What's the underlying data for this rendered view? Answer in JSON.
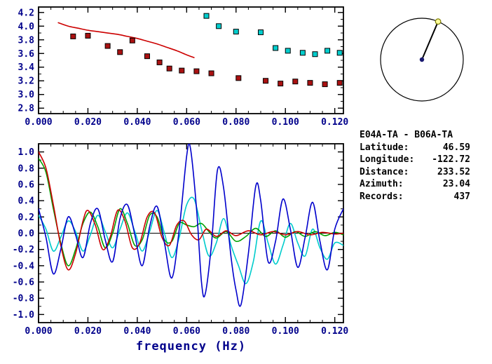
{
  "info": {
    "title": "E04A-TA - B06A-TA",
    "rows": [
      {
        "label": "Latitude:",
        "value": "46.59"
      },
      {
        "label": "Longitude:",
        "value": "-122.72"
      },
      {
        "label": "Distance:",
        "value": "233.52"
      },
      {
        "label": "Azimuth:",
        "value": "23.04"
      },
      {
        "label": "Records:",
        "value": "437"
      }
    ]
  },
  "compass": {
    "azimuth_deg": 23.04,
    "center_dot_color": "#191970",
    "end_marker_fill": "#FFFF99",
    "end_marker_stroke": "#7A7A00"
  },
  "colors": {
    "axis_label": "#00008B",
    "frame": "#000000",
    "red": "#CC0000",
    "green": "#00A000",
    "blue": "#0000CC",
    "cyan": "#00CCCC",
    "dark_red_square": "#AA1111",
    "cyan_square": "#00CDCD"
  },
  "chart_data": [
    {
      "type": "scatter",
      "title": "",
      "xlabel": "",
      "ylabel": "",
      "xlim": [
        0,
        0.1235
      ],
      "ylim": [
        2.72,
        4.28
      ],
      "x_minor_step": 0.005,
      "y_minor_step": 0.1,
      "zero_line": false,
      "x_tick_values": [
        0,
        0.02,
        0.04,
        0.06,
        0.08,
        0.1,
        0.12
      ],
      "x_tick_labels": [
        "0.000",
        "0.020",
        "0.040",
        "0.060",
        "0.080",
        "0.100",
        "0.120"
      ],
      "y_tick_values": [
        2.8,
        3.0,
        3.2,
        3.4,
        3.6,
        3.8,
        4.0,
        4.2
      ],
      "y_tick_labels": [
        "2.8",
        "3.0",
        "3.2",
        "3.4",
        "3.6",
        "3.8",
        "4.0",
        "4.2"
      ],
      "series": [
        {
          "name": "reference-dispersion-curve",
          "kind": "line",
          "color": "#CC0000",
          "points": [
            [
              0.008,
              4.05
            ],
            [
              0.012,
              4.0
            ],
            [
              0.016,
              3.97
            ],
            [
              0.02,
              3.94
            ],
            [
              0.024,
              3.92
            ],
            [
              0.028,
              3.9
            ],
            [
              0.032,
              3.88
            ],
            [
              0.036,
              3.85
            ],
            [
              0.04,
              3.82
            ],
            [
              0.044,
              3.78
            ],
            [
              0.048,
              3.74
            ],
            [
              0.052,
              3.69
            ],
            [
              0.056,
              3.64
            ],
            [
              0.06,
              3.58
            ],
            [
              0.063,
              3.54
            ]
          ]
        },
        {
          "name": "dispersion-picks-dark-red",
          "kind": "square",
          "color": "#AA1111",
          "points": [
            [
              0.014,
              3.85
            ],
            [
              0.02,
              3.86
            ],
            [
              0.028,
              3.71
            ],
            [
              0.033,
              3.62
            ],
            [
              0.038,
              3.79
            ],
            [
              0.044,
              3.56
            ],
            [
              0.049,
              3.47
            ],
            [
              0.053,
              3.38
            ],
            [
              0.058,
              3.35
            ],
            [
              0.064,
              3.34
            ],
            [
              0.07,
              3.31
            ],
            [
              0.081,
              3.24
            ],
            [
              0.092,
              3.2
            ],
            [
              0.098,
              3.16
            ],
            [
              0.104,
              3.19
            ],
            [
              0.11,
              3.17
            ],
            [
              0.116,
              3.15
            ],
            [
              0.122,
              3.17
            ]
          ]
        },
        {
          "name": "dispersion-picks-cyan",
          "kind": "square",
          "color": "#00CDCD",
          "points": [
            [
              0.068,
              4.15
            ],
            [
              0.073,
              4.0
            ],
            [
              0.08,
              3.92
            ],
            [
              0.09,
              3.91
            ],
            [
              0.096,
              3.68
            ],
            [
              0.101,
              3.64
            ],
            [
              0.107,
              3.61
            ],
            [
              0.112,
              3.59
            ],
            [
              0.117,
              3.64
            ],
            [
              0.122,
              3.61
            ]
          ]
        }
      ]
    },
    {
      "type": "line",
      "title": "",
      "xlabel": "frequency (Hz)",
      "ylabel": "",
      "xlim": [
        0,
        0.1235
      ],
      "ylim": [
        -1.1,
        1.1
      ],
      "x_minor_step": 0.005,
      "y_minor_step": 0.1,
      "zero_line": true,
      "x_tick_values": [
        0,
        0.02,
        0.04,
        0.06,
        0.08,
        0.1,
        0.12
      ],
      "x_tick_labels": [
        "0.000",
        "0.020",
        "0.040",
        "0.060",
        "0.080",
        "0.100",
        "0.120"
      ],
      "y_tick_values": [
        -1.0,
        -0.8,
        -0.6,
        -0.4,
        -0.2,
        0.0,
        0.2,
        0.4,
        0.6,
        0.8,
        1.0
      ],
      "y_tick_labels": [
        "-1.0",
        "-0.8",
        "-0.6",
        "-0.4",
        "-0.2",
        "0.0",
        "0.2",
        "0.4",
        "0.6",
        "0.8",
        "1.0"
      ],
      "series": [
        {
          "name": "waveform-cyan",
          "kind": "line",
          "color": "#00CCCC",
          "points": [
            [
              0,
              0.22
            ],
            [
              0.003,
              0.05
            ],
            [
              0.006,
              -0.22
            ],
            [
              0.009,
              -0.05
            ],
            [
              0.012,
              0.15
            ],
            [
              0.015,
              0.02
            ],
            [
              0.018,
              -0.22
            ],
            [
              0.021,
              -0.02
            ],
            [
              0.024,
              0.22
            ],
            [
              0.027,
              0.02
            ],
            [
              0.03,
              -0.18
            ],
            [
              0.033,
              0.05
            ],
            [
              0.036,
              0.25
            ],
            [
              0.039,
              0.02
            ],
            [
              0.042,
              -0.22
            ],
            [
              0.045,
              0.02
            ],
            [
              0.048,
              0.28
            ],
            [
              0.051,
              0.0
            ],
            [
              0.054,
              -0.3
            ],
            [
              0.057,
              -0.05
            ],
            [
              0.06,
              0.35
            ],
            [
              0.063,
              0.42
            ],
            [
              0.066,
              0.05
            ],
            [
              0.069,
              -0.28
            ],
            [
              0.072,
              -0.12
            ],
            [
              0.075,
              0.18
            ],
            [
              0.078,
              -0.15
            ],
            [
              0.081,
              -0.4
            ],
            [
              0.084,
              -0.62
            ],
            [
              0.087,
              -0.35
            ],
            [
              0.09,
              0.15
            ],
            [
              0.093,
              -0.12
            ],
            [
              0.096,
              -0.38
            ],
            [
              0.099,
              -0.15
            ],
            [
              0.102,
              0.12
            ],
            [
              0.105,
              -0.12
            ],
            [
              0.108,
              -0.28
            ],
            [
              0.111,
              0.05
            ],
            [
              0.114,
              -0.18
            ],
            [
              0.117,
              -0.32
            ],
            [
              0.12,
              -0.12
            ],
            [
              0.1235,
              -0.15
            ]
          ]
        },
        {
          "name": "waveform-green",
          "kind": "line",
          "color": "#00A000",
          "points": [
            [
              0,
              0.92
            ],
            [
              0.003,
              0.75
            ],
            [
              0.006,
              0.3
            ],
            [
              0.009,
              -0.12
            ],
            [
              0.012,
              -0.4
            ],
            [
              0.015,
              -0.2
            ],
            [
              0.018,
              0.12
            ],
            [
              0.021,
              0.26
            ],
            [
              0.024,
              0.08
            ],
            [
              0.027,
              -0.18
            ],
            [
              0.03,
              0.0
            ],
            [
              0.033,
              0.3
            ],
            [
              0.036,
              0.12
            ],
            [
              0.039,
              -0.15
            ],
            [
              0.042,
              -0.08
            ],
            [
              0.045,
              0.22
            ],
            [
              0.048,
              0.2
            ],
            [
              0.051,
              -0.08
            ],
            [
              0.054,
              -0.1
            ],
            [
              0.057,
              0.12
            ],
            [
              0.06,
              0.1
            ],
            [
              0.063,
              0.08
            ],
            [
              0.066,
              0.12
            ],
            [
              0.069,
              0.02
            ],
            [
              0.072,
              -0.06
            ],
            [
              0.076,
              0.02
            ],
            [
              0.08,
              -0.1
            ],
            [
              0.084,
              -0.04
            ],
            [
              0.088,
              0.06
            ],
            [
              0.092,
              -0.04
            ],
            [
              0.096,
              0.03
            ],
            [
              0.1,
              -0.05
            ],
            [
              0.104,
              0.02
            ],
            [
              0.108,
              -0.04
            ],
            [
              0.112,
              0.02
            ],
            [
              0.116,
              -0.03
            ],
            [
              0.12,
              0.01
            ],
            [
              0.1235,
              -0.02
            ]
          ]
        },
        {
          "name": "waveform-red",
          "kind": "line",
          "color": "#CC0000",
          "points": [
            [
              0,
              1.0
            ],
            [
              0.003,
              0.8
            ],
            [
              0.006,
              0.35
            ],
            [
              0.009,
              -0.15
            ],
            [
              0.012,
              -0.45
            ],
            [
              0.015,
              -0.25
            ],
            [
              0.018,
              0.15
            ],
            [
              0.02,
              0.28
            ],
            [
              0.023,
              0.1
            ],
            [
              0.026,
              -0.2
            ],
            [
              0.029,
              -0.05
            ],
            [
              0.032,
              0.28
            ],
            [
              0.035,
              0.15
            ],
            [
              0.038,
              -0.18
            ],
            [
              0.041,
              -0.12
            ],
            [
              0.044,
              0.2
            ],
            [
              0.047,
              0.25
            ],
            [
              0.05,
              -0.05
            ],
            [
              0.053,
              -0.15
            ],
            [
              0.056,
              0.1
            ],
            [
              0.059,
              0.15
            ],
            [
              0.062,
              -0.02
            ],
            [
              0.065,
              -0.08
            ],
            [
              0.068,
              0.05
            ],
            [
              0.072,
              -0.04
            ],
            [
              0.076,
              0.03
            ],
            [
              0.08,
              -0.03
            ],
            [
              0.085,
              0.03
            ],
            [
              0.09,
              -0.02
            ],
            [
              0.095,
              0.02
            ],
            [
              0.1,
              -0.02
            ],
            [
              0.105,
              0.02
            ],
            [
              0.11,
              -0.02
            ],
            [
              0.115,
              0.01
            ],
            [
              0.12,
              -0.01
            ],
            [
              0.1235,
              0.0
            ]
          ]
        },
        {
          "name": "waveform-blue",
          "kind": "line",
          "color": "#0000CC",
          "points": [
            [
              0,
              0.3
            ],
            [
              0.003,
              -0.05
            ],
            [
              0.006,
              -0.5
            ],
            [
              0.009,
              -0.2
            ],
            [
              0.012,
              0.2
            ],
            [
              0.015,
              -0.02
            ],
            [
              0.018,
              -0.3
            ],
            [
              0.021,
              0.12
            ],
            [
              0.024,
              0.3
            ],
            [
              0.027,
              -0.08
            ],
            [
              0.03,
              -0.35
            ],
            [
              0.033,
              0.18
            ],
            [
              0.036,
              0.35
            ],
            [
              0.039,
              -0.02
            ],
            [
              0.042,
              -0.4
            ],
            [
              0.045,
              0.08
            ],
            [
              0.048,
              0.33
            ],
            [
              0.051,
              -0.12
            ],
            [
              0.054,
              -0.55
            ],
            [
              0.057,
              0.05
            ],
            [
              0.06,
              0.95
            ],
            [
              0.0615,
              1.05
            ],
            [
              0.064,
              0.3
            ],
            [
              0.066,
              -0.6
            ],
            [
              0.0675,
              -0.75
            ],
            [
              0.07,
              -0.15
            ],
            [
              0.0725,
              0.78
            ],
            [
              0.075,
              0.55
            ],
            [
              0.078,
              -0.3
            ],
            [
              0.08,
              -0.7
            ],
            [
              0.082,
              -0.88
            ],
            [
              0.085,
              -0.25
            ],
            [
              0.088,
              0.58
            ],
            [
              0.09,
              0.4
            ],
            [
              0.093,
              -0.35
            ],
            [
              0.096,
              -0.1
            ],
            [
              0.099,
              0.42
            ],
            [
              0.102,
              0.05
            ],
            [
              0.105,
              -0.42
            ],
            [
              0.108,
              -0.05
            ],
            [
              0.111,
              0.38
            ],
            [
              0.114,
              -0.1
            ],
            [
              0.117,
              -0.45
            ],
            [
              0.12,
              0.05
            ],
            [
              0.1235,
              0.3
            ]
          ]
        }
      ]
    }
  ]
}
